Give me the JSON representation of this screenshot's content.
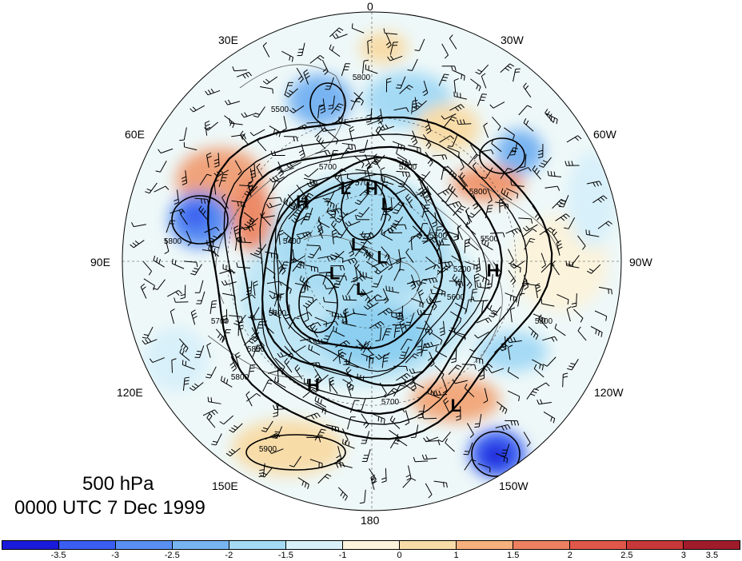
{
  "map": {
    "type": "polar-stereographic",
    "hemisphere": "north",
    "level_label": "500 hPa",
    "time_label": "0000 UTC 7 Dec 1999",
    "longitude_labels": [
      "0",
      "30W",
      "60W",
      "90W",
      "120W",
      "150W",
      "180",
      "150E",
      "120E",
      "90E",
      "60E",
      "30E"
    ],
    "contour_labels": [
      "5800",
      "5500",
      "5700",
      "5200",
      "5800",
      "5500",
      "5200",
      "5400",
      "5600",
      "5700",
      "5800",
      "5600",
      "5500",
      "5800",
      "5700",
      "5900",
      "5700",
      "5800",
      "5800",
      "5600"
    ],
    "pressure_centers": [
      {
        "type": "H",
        "lon": 0,
        "lat": 58
      },
      {
        "type": "L",
        "lon": 20,
        "lat": 56
      },
      {
        "type": "L",
        "lon": -15,
        "lat": 64
      },
      {
        "type": "H",
        "lon": 50,
        "lat": 50
      },
      {
        "type": "H",
        "lon": -95,
        "lat": 38
      },
      {
        "type": "L",
        "lon": 45,
        "lat": 80
      },
      {
        "type": "L",
        "lon": -75,
        "lat": 85
      },
      {
        "type": "L",
        "lon": 110,
        "lat": 72
      },
      {
        "type": "L",
        "lon": 160,
        "lat": 76
      },
      {
        "type": "H",
        "lon": 155,
        "lat": 32
      },
      {
        "type": "L",
        "lon": -150,
        "lat": 22
      }
    ],
    "colors": {
      "continents": "#5a5a5a",
      "contour": "#000000",
      "graticule": "#444444"
    }
  },
  "colorbar": {
    "colors": [
      "#1a1adb",
      "#3a5ef0",
      "#5a8ff2",
      "#78b4f2",
      "#a5daf5",
      "#d8f0fa",
      "#fbf3dc",
      "#f8dca8",
      "#f5b07d",
      "#ec8060",
      "#e0584a",
      "#c83838",
      "#a01c2c"
    ],
    "tick_labels": [
      "-3.5",
      "-3",
      "-2.5",
      "-2",
      "-1.5",
      "-1",
      "0",
      "1",
      "1.5",
      "2",
      "2.5",
      "3",
      "3.5"
    ]
  }
}
